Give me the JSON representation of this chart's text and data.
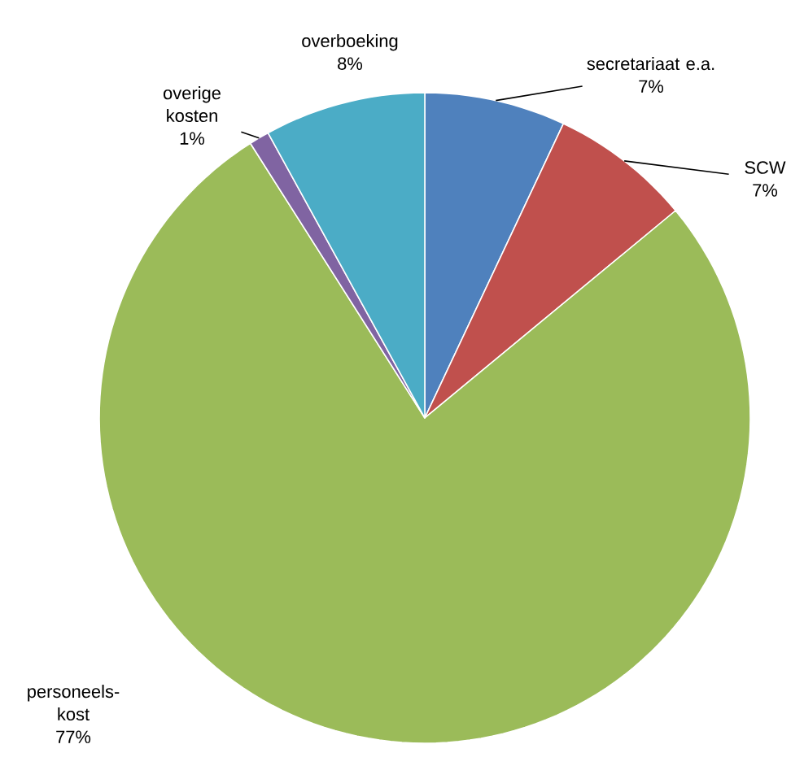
{
  "chart_data": {
    "type": "pie",
    "categories": [
      "secretariaat e.a.",
      "SCW",
      "personeels-kost",
      "overige kosten",
      "overboeking"
    ],
    "values": [
      7,
      7,
      77,
      1,
      8
    ],
    "value_labels": [
      "7%",
      "7%",
      "77%",
      "1%",
      "8%"
    ],
    "colors": [
      "#4f81bd",
      "#c0504d",
      "#9bbb59",
      "#8064a2",
      "#4bacc6"
    ],
    "legend": false
  }
}
